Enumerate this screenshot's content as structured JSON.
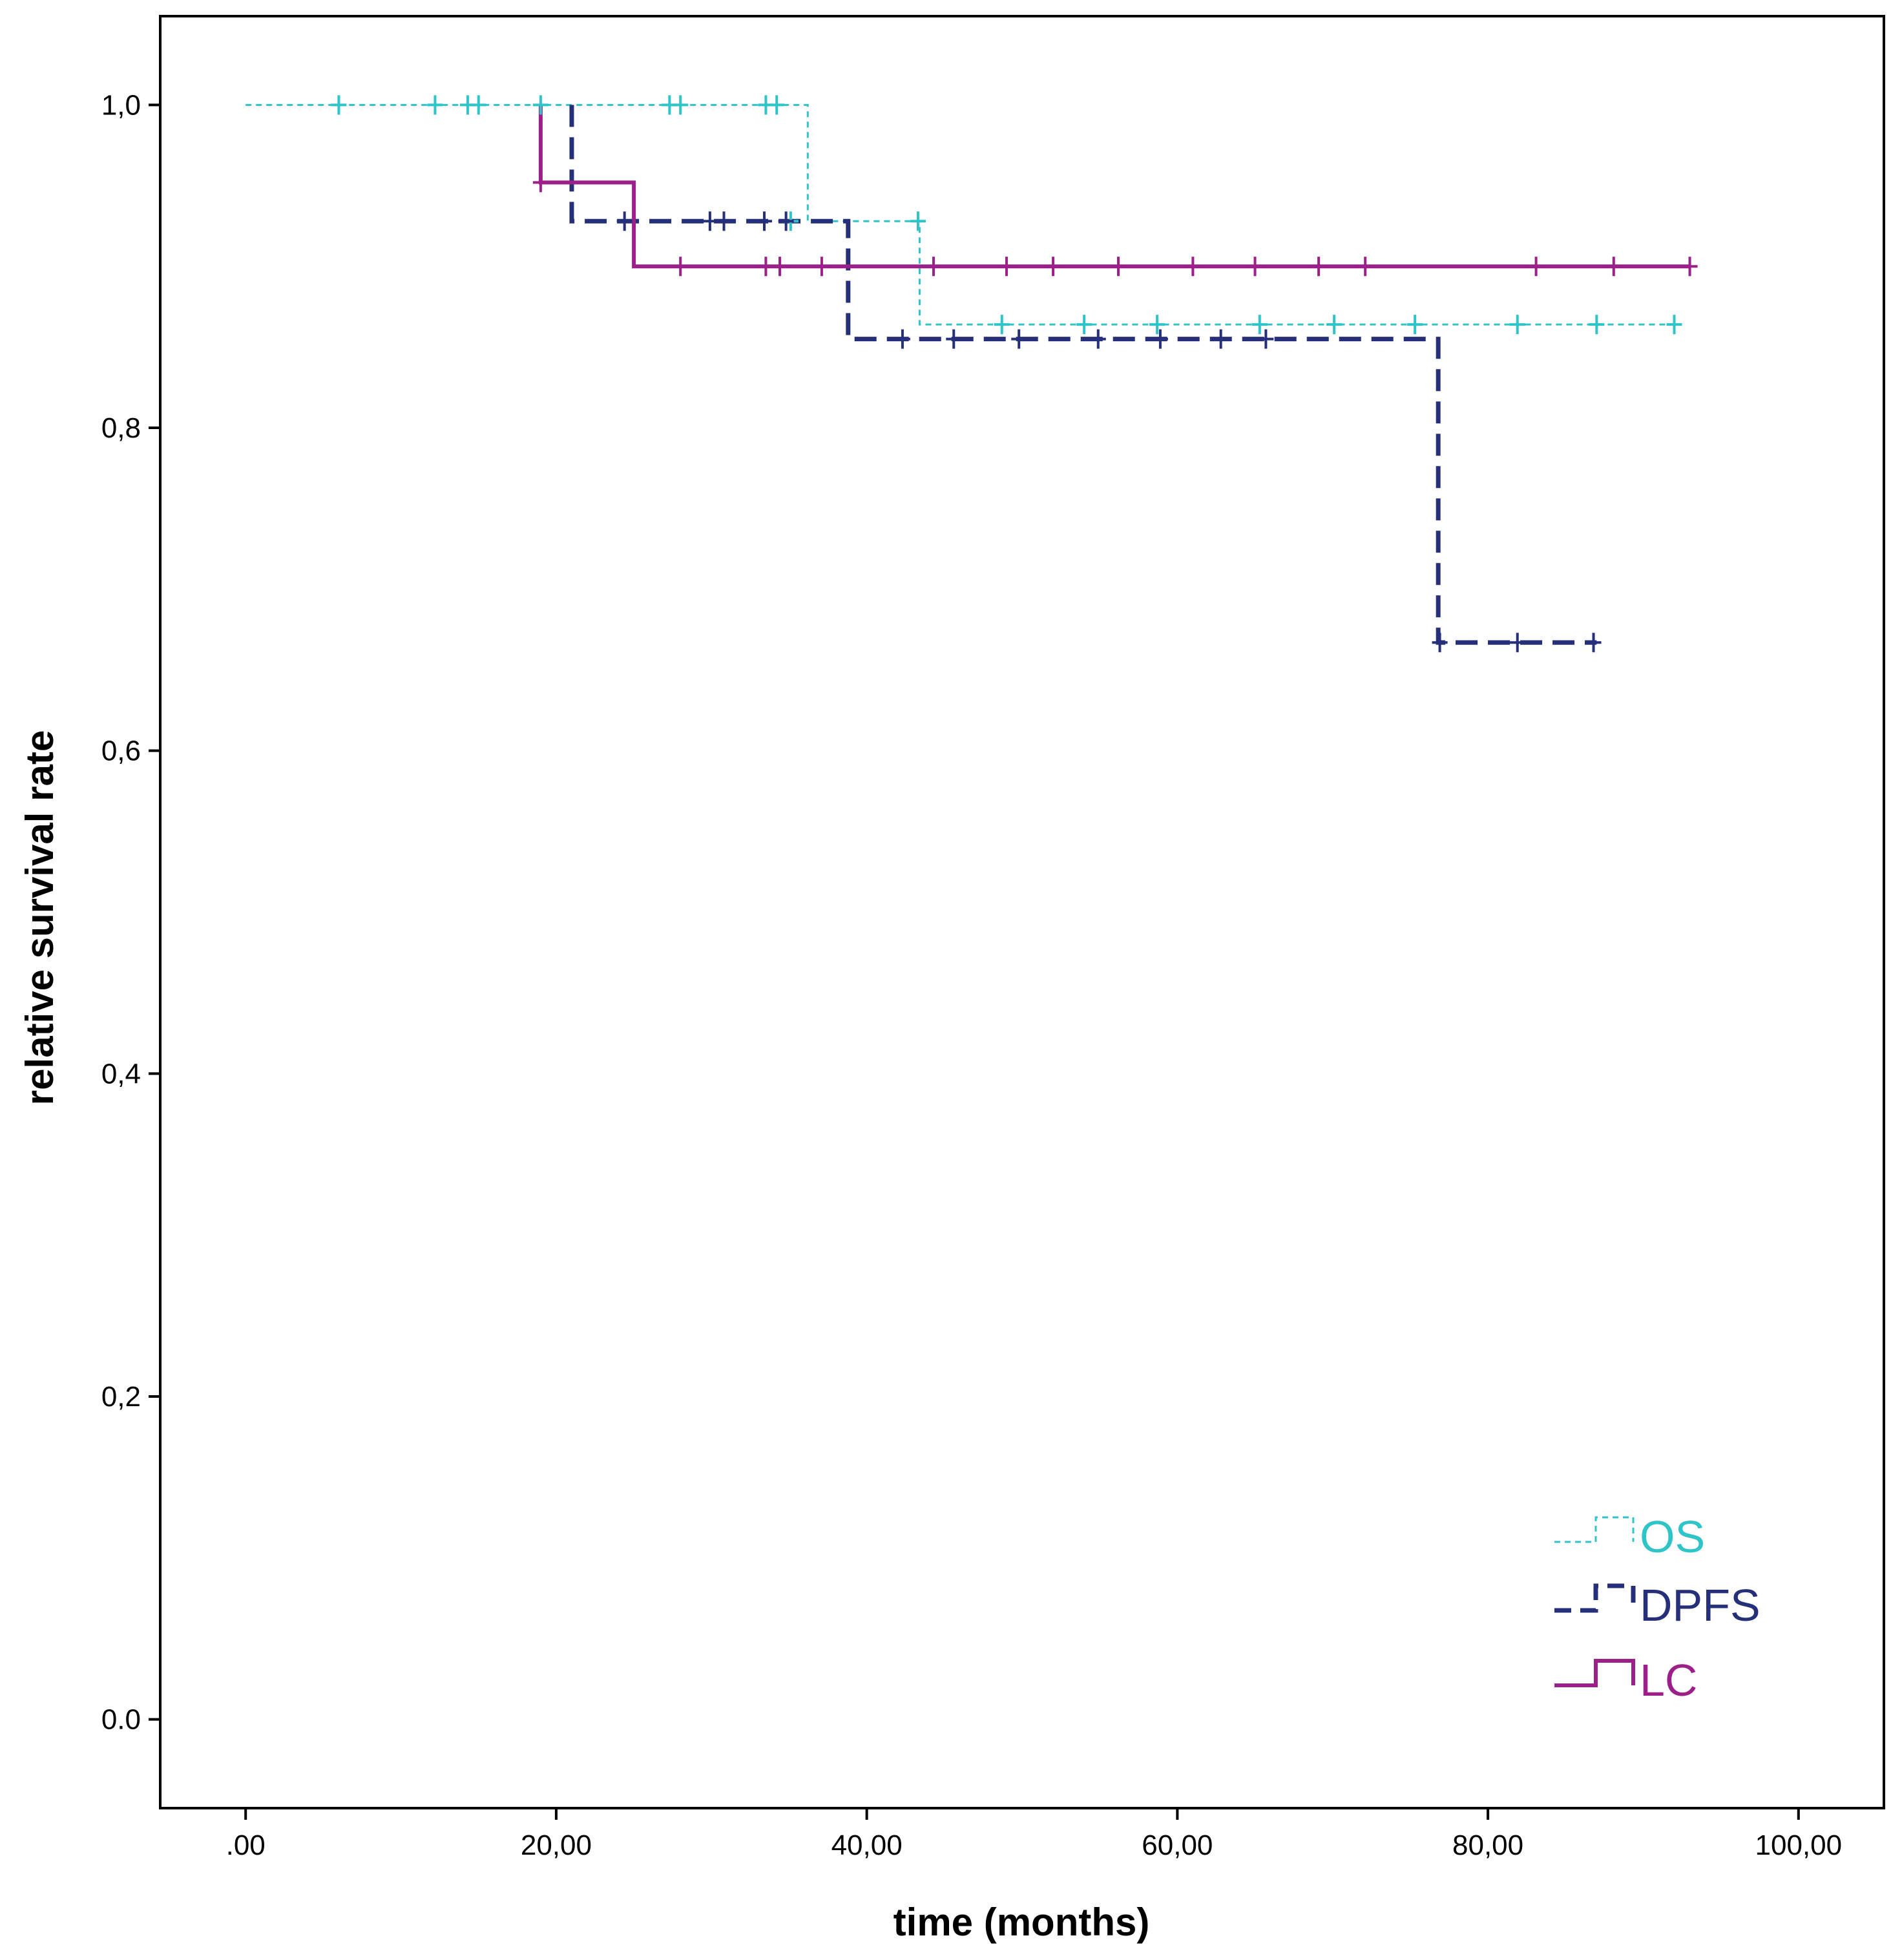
{
  "chart_data": {
    "type": "line",
    "subtype": "kaplan-meier step",
    "title": "",
    "xlabel": "time (months)",
    "ylabel": "relative survival rate",
    "xlim": [
      -5.5,
      105.5
    ],
    "ylim": [
      -0.055,
      1.055
    ],
    "x_ticks": [
      0,
      20,
      40,
      60,
      80,
      100
    ],
    "x_tick_labels": [
      ".00",
      "20,00",
      "40,00",
      "60,00",
      "80,00",
      "100,00"
    ],
    "y_ticks": [
      0,
      0.2,
      0.4,
      0.6,
      0.8,
      1.0
    ],
    "y_tick_labels": [
      "0.0",
      "0,2",
      "0,4",
      "0,6",
      "0,8",
      "1,0"
    ],
    "grid": false,
    "legend_position": "bottom-right",
    "series": [
      {
        "name": "OS",
        "color": "#2ec4c8",
        "dash": "dotted",
        "steps": [
          [
            0,
            1.0
          ],
          [
            36.2,
            0.928
          ],
          [
            43.4,
            0.864
          ],
          [
            92,
            0.864
          ]
        ],
        "censored": [
          [
            6,
            1.0
          ],
          [
            12.2,
            1.0
          ],
          [
            14.3,
            1.0
          ],
          [
            15,
            1.0
          ],
          [
            19,
            1.0
          ],
          [
            27.3,
            1.0
          ],
          [
            28,
            1.0
          ],
          [
            33.5,
            1.0
          ],
          [
            34.2,
            1.0
          ],
          [
            35.1,
            0.928
          ],
          [
            43.3,
            0.928
          ],
          [
            48.7,
            0.864
          ],
          [
            54,
            0.864
          ],
          [
            58.7,
            0.864
          ],
          [
            65.3,
            0.864
          ],
          [
            70.1,
            0.864
          ],
          [
            75.3,
            0.864
          ],
          [
            81.9,
            0.864
          ],
          [
            87,
            0.864
          ],
          [
            92,
            0.864
          ]
        ]
      },
      {
        "name": "DPFS",
        "color": "#26307a",
        "dash": "dashed",
        "steps": [
          [
            21,
            1.0
          ],
          [
            21,
            0.928
          ],
          [
            38.8,
            0.928
          ],
          [
            38.8,
            0.855
          ],
          [
            76.8,
            0.855
          ],
          [
            76.8,
            0.667
          ],
          [
            87,
            0.667
          ]
        ],
        "censored": [
          [
            24.4,
            0.928
          ],
          [
            29.9,
            0.928
          ],
          [
            30.8,
            0.928
          ],
          [
            33.4,
            0.928
          ],
          [
            34.8,
            0.928
          ],
          [
            42.3,
            0.855
          ],
          [
            45.6,
            0.855
          ],
          [
            49.8,
            0.855
          ],
          [
            54.9,
            0.855
          ],
          [
            58.9,
            0.855
          ],
          [
            62.8,
            0.855
          ],
          [
            65.7,
            0.855
          ],
          [
            76.9,
            0.667
          ],
          [
            81.9,
            0.667
          ],
          [
            86.8,
            0.667
          ]
        ]
      },
      {
        "name": "LC",
        "color": "#9c1f8a",
        "dash": "solid",
        "steps": [
          [
            19,
            1.0
          ],
          [
            19,
            0.952
          ],
          [
            25,
            0.952
          ],
          [
            25,
            0.9
          ],
          [
            93,
            0.9
          ]
        ],
        "censored": [
          [
            19,
            0.952
          ],
          [
            28,
            0.9
          ],
          [
            33.5,
            0.9
          ],
          [
            34.4,
            0.9
          ],
          [
            37.1,
            0.9
          ],
          [
            44.3,
            0.9
          ],
          [
            49,
            0.9
          ],
          [
            52,
            0.9
          ],
          [
            56.2,
            0.9
          ],
          [
            61,
            0.9
          ],
          [
            65,
            0.9
          ],
          [
            69.1,
            0.9
          ],
          [
            72.1,
            0.9
          ],
          [
            83.1,
            0.9
          ],
          [
            88.1,
            0.9
          ],
          [
            93,
            0.9
          ]
        ]
      }
    ]
  }
}
